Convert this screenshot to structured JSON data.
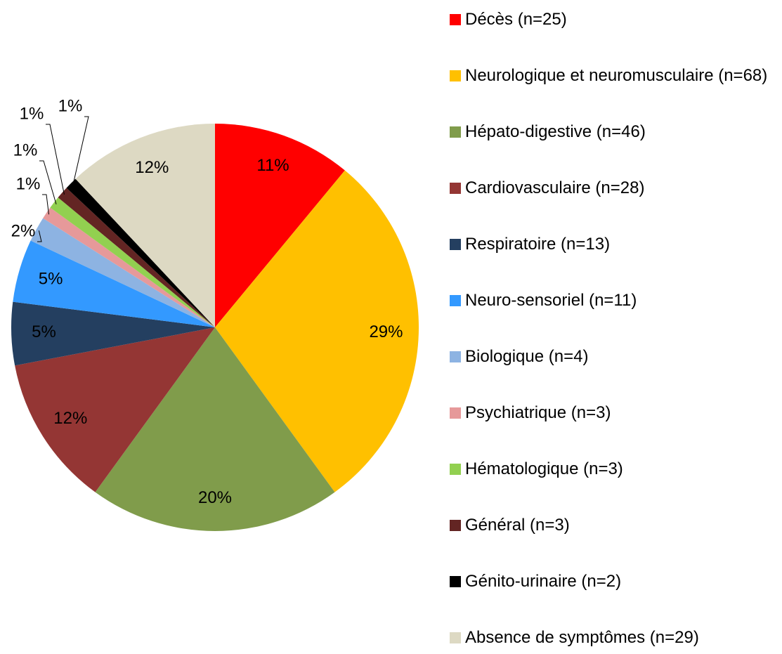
{
  "chart_data": {
    "type": "pie",
    "categories": [
      "Décès (n=25)",
      "Neurologique et neuromusculaire (n=68)",
      "Hépato-digestive (n=46)",
      "Cardiovasculaire (n=28)",
      "Respiratoire (n=13)",
      "Neuro-sensoriel (n=11)",
      "Biologique (n=4)",
      "Psychiatrique (n=3)",
      "Hématologique (n=3)",
      "Général (n=3)",
      "Génito-urinaire (n=2)",
      "Absence de symptômes (n=29)"
    ],
    "values": [
      11,
      29,
      20,
      12,
      5,
      5,
      2,
      1,
      1,
      1,
      1,
      12
    ],
    "value_labels": [
      "11%",
      "29%",
      "20%",
      "12%",
      "5%",
      "5%",
      "2%",
      "1%",
      "1%",
      "1%",
      "1%",
      "12%"
    ],
    "colors": [
      "#ff0000",
      "#ffc000",
      "#809c4b",
      "#943634",
      "#243f60",
      "#3399ff",
      "#8db3e2",
      "#e6999a",
      "#92d050",
      "#632523",
      "#000000",
      "#ddd9c3"
    ],
    "legend": "right"
  }
}
